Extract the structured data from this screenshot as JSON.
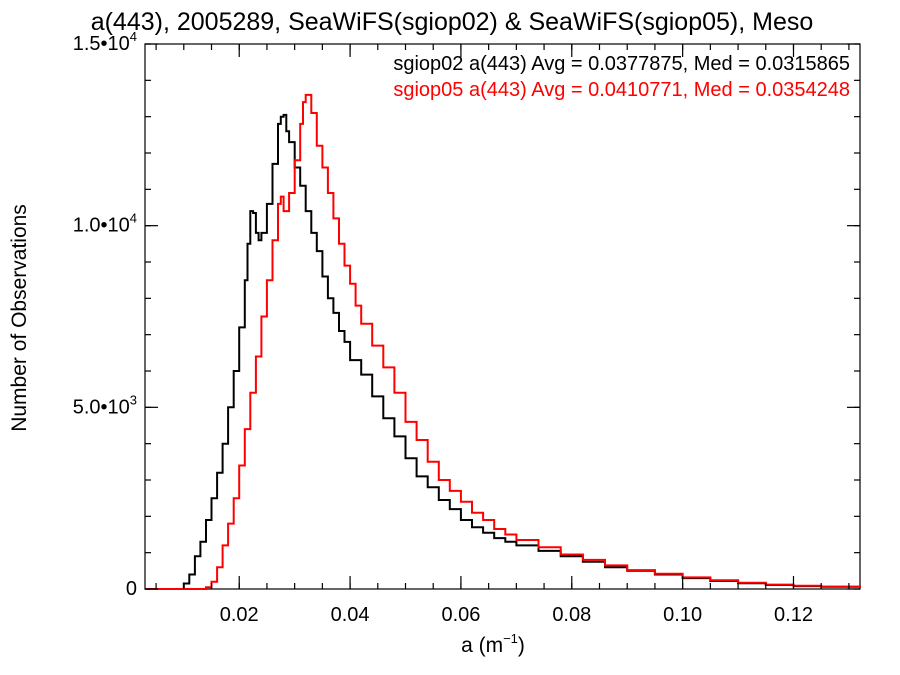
{
  "chart_data": {
    "type": "line",
    "step": true,
    "title": "a(443), 2005289, SeaWiFS(sgiop02) & SeaWiFS(sgiop05), Meso",
    "xlabel_base": "a (m",
    "xlabel_sup": "−1",
    "xlabel_close": ")",
    "ylabel": "Number of Observations",
    "xlim": [
      0.003,
      0.132
    ],
    "ylim": [
      0,
      15000
    ],
    "x_ticks": [
      {
        "value": 0.02,
        "label": "0.02"
      },
      {
        "value": 0.04,
        "label": "0.04"
      },
      {
        "value": 0.06,
        "label": "0.06"
      },
      {
        "value": 0.08,
        "label": "0.08"
      },
      {
        "value": 0.1,
        "label": "0.10"
      },
      {
        "value": 0.12,
        "label": "0.12"
      }
    ],
    "x_minor_step": 0.005,
    "y_ticks": [
      {
        "value": 0,
        "mant": "0",
        "exp": ""
      },
      {
        "value": 5000,
        "mant": "5.0•10",
        "exp": "3"
      },
      {
        "value": 10000,
        "mant": "1.0•10",
        "exp": "4"
      },
      {
        "value": 15000,
        "mant": "1.5•10",
        "exp": "4"
      }
    ],
    "y_minor_step": 1000,
    "series": [
      {
        "name": "sgiop02 a(443) Avg = 0.0377875, Med = 0.0315865",
        "color": "#000000",
        "points": [
          [
            0.003,
            0
          ],
          [
            0.009,
            0
          ],
          [
            0.01,
            150
          ],
          [
            0.011,
            400
          ],
          [
            0.012,
            900
          ],
          [
            0.013,
            1300
          ],
          [
            0.014,
            1900
          ],
          [
            0.015,
            2500
          ],
          [
            0.016,
            3200
          ],
          [
            0.017,
            4000
          ],
          [
            0.018,
            5000
          ],
          [
            0.019,
            6000
          ],
          [
            0.02,
            7200
          ],
          [
            0.021,
            8500
          ],
          [
            0.0215,
            9500
          ],
          [
            0.022,
            10400
          ],
          [
            0.0225,
            10350
          ],
          [
            0.023,
            9800
          ],
          [
            0.0235,
            9600
          ],
          [
            0.024,
            9800
          ],
          [
            0.025,
            10600
          ],
          [
            0.026,
            11700
          ],
          [
            0.027,
            12800
          ],
          [
            0.0275,
            13000
          ],
          [
            0.028,
            13050
          ],
          [
            0.0285,
            12600
          ],
          [
            0.029,
            12300
          ],
          [
            0.03,
            11600
          ],
          [
            0.031,
            11100
          ],
          [
            0.032,
            10400
          ],
          [
            0.033,
            9800
          ],
          [
            0.034,
            9300
          ],
          [
            0.035,
            8600
          ],
          [
            0.036,
            8000
          ],
          [
            0.037,
            7600
          ],
          [
            0.038,
            7100
          ],
          [
            0.039,
            6800
          ],
          [
            0.04,
            6300
          ],
          [
            0.042,
            5900
          ],
          [
            0.044,
            5300
          ],
          [
            0.046,
            4700
          ],
          [
            0.048,
            4200
          ],
          [
            0.05,
            3600
          ],
          [
            0.052,
            3100
          ],
          [
            0.054,
            2800
          ],
          [
            0.056,
            2450
          ],
          [
            0.058,
            2200
          ],
          [
            0.06,
            1900
          ],
          [
            0.062,
            1700
          ],
          [
            0.064,
            1550
          ],
          [
            0.066,
            1400
          ],
          [
            0.068,
            1300
          ],
          [
            0.07,
            1200
          ],
          [
            0.074,
            1050
          ],
          [
            0.078,
            900
          ],
          [
            0.082,
            750
          ],
          [
            0.086,
            600
          ],
          [
            0.09,
            500
          ],
          [
            0.095,
            400
          ],
          [
            0.1,
            300
          ],
          [
            0.105,
            220
          ],
          [
            0.11,
            160
          ],
          [
            0.115,
            110
          ],
          [
            0.12,
            80
          ],
          [
            0.125,
            60
          ],
          [
            0.132,
            30
          ]
        ]
      },
      {
        "name": "sgiop05 a(443) Avg = 0.0410771, Med = 0.0354248",
        "color": "#ff0000",
        "points": [
          [
            0.003,
            0
          ],
          [
            0.0135,
            0
          ],
          [
            0.014,
            50
          ],
          [
            0.015,
            200
          ],
          [
            0.016,
            600
          ],
          [
            0.017,
            1200
          ],
          [
            0.018,
            1800
          ],
          [
            0.019,
            2500
          ],
          [
            0.02,
            3400
          ],
          [
            0.021,
            4400
          ],
          [
            0.022,
            5400
          ],
          [
            0.023,
            6400
          ],
          [
            0.024,
            7500
          ],
          [
            0.025,
            8500
          ],
          [
            0.026,
            9600
          ],
          [
            0.027,
            10600
          ],
          [
            0.0275,
            10800
          ],
          [
            0.028,
            10400
          ],
          [
            0.029,
            10900
          ],
          [
            0.03,
            11800
          ],
          [
            0.031,
            12800
          ],
          [
            0.0315,
            13400
          ],
          [
            0.032,
            13600
          ],
          [
            0.033,
            13100
          ],
          [
            0.034,
            12200
          ],
          [
            0.035,
            11600
          ],
          [
            0.036,
            10900
          ],
          [
            0.037,
            10200
          ],
          [
            0.038,
            9500
          ],
          [
            0.039,
            8900
          ],
          [
            0.04,
            8400
          ],
          [
            0.041,
            7800
          ],
          [
            0.042,
            7300
          ],
          [
            0.044,
            6700
          ],
          [
            0.046,
            6100
          ],
          [
            0.048,
            5400
          ],
          [
            0.05,
            4600
          ],
          [
            0.052,
            4100
          ],
          [
            0.054,
            3500
          ],
          [
            0.056,
            3000
          ],
          [
            0.058,
            2700
          ],
          [
            0.06,
            2400
          ],
          [
            0.062,
            2100
          ],
          [
            0.064,
            1900
          ],
          [
            0.066,
            1650
          ],
          [
            0.068,
            1500
          ],
          [
            0.07,
            1350
          ],
          [
            0.074,
            1150
          ],
          [
            0.078,
            950
          ],
          [
            0.082,
            800
          ],
          [
            0.086,
            650
          ],
          [
            0.09,
            520
          ],
          [
            0.095,
            420
          ],
          [
            0.1,
            320
          ],
          [
            0.105,
            240
          ],
          [
            0.11,
            170
          ],
          [
            0.115,
            120
          ],
          [
            0.12,
            90
          ],
          [
            0.125,
            60
          ],
          [
            0.132,
            30
          ]
        ]
      }
    ]
  }
}
